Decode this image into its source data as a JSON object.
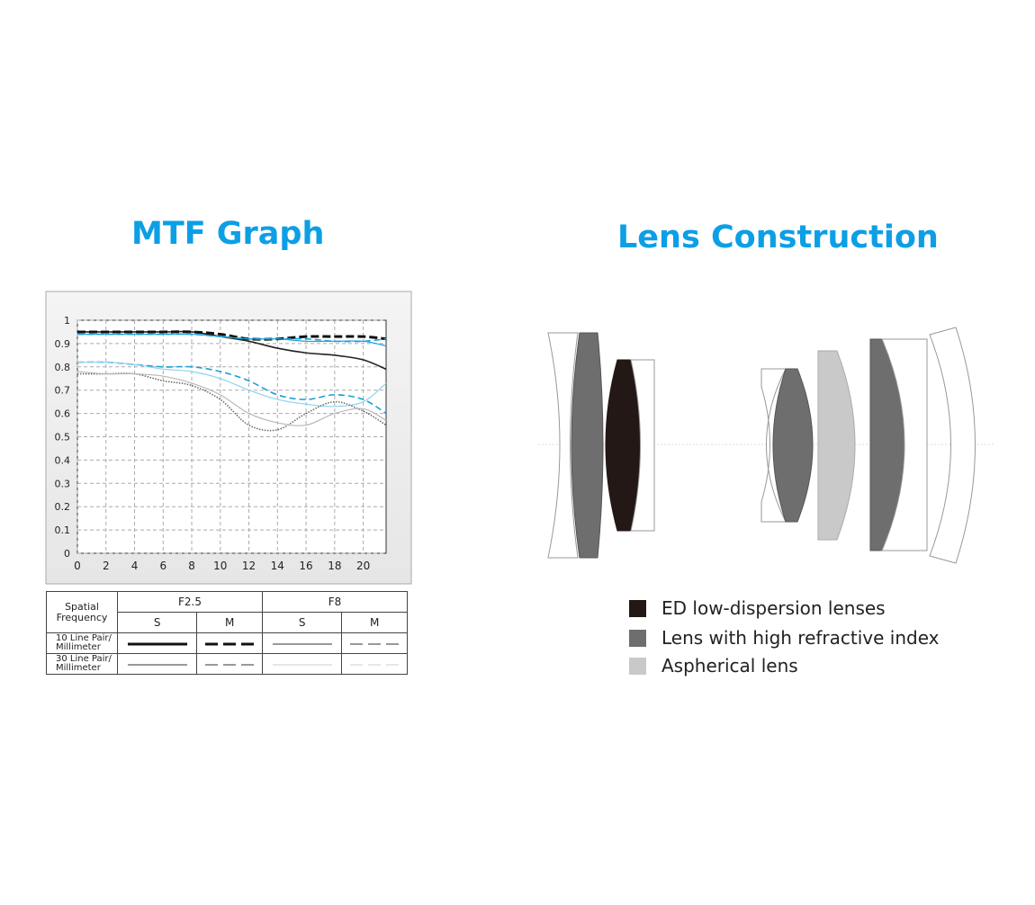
{
  "chart_data": {
    "type": "line",
    "title": "MTF Graph",
    "x": [
      0,
      2,
      4,
      6,
      8,
      10,
      12,
      14,
      16,
      18,
      20,
      21.6
    ],
    "xlim": [
      0,
      21.6
    ],
    "xticks": [
      0,
      2,
      4,
      6,
      8,
      10,
      12,
      14,
      16,
      18,
      20
    ],
    "ylim": [
      0,
      1
    ],
    "yticks": [
      0,
      0.1,
      0.2,
      0.3,
      0.4,
      0.5,
      0.6,
      0.7,
      0.8,
      0.9,
      1
    ],
    "grid": true,
    "series": [
      {
        "color": "#222222",
        "style": "solid-bold",
        "values": [
          0.95,
          0.95,
          0.95,
          0.95,
          0.95,
          0.93,
          0.91,
          0.88,
          0.86,
          0.85,
          0.83,
          0.79
        ]
      },
      {
        "color": "#111111",
        "style": "dashed-bold",
        "values": [
          0.95,
          0.95,
          0.95,
          0.95,
          0.95,
          0.94,
          0.92,
          0.92,
          0.93,
          0.93,
          0.93,
          0.92
        ]
      },
      {
        "color": "#1aa3d9",
        "style": "solid",
        "values": [
          0.94,
          0.94,
          0.94,
          0.94,
          0.94,
          0.93,
          0.92,
          0.92,
          0.91,
          0.91,
          0.91,
          0.89
        ]
      },
      {
        "color": "#1aa3d9",
        "style": "dashed",
        "values": [
          0.94,
          0.94,
          0.94,
          0.94,
          0.94,
          0.93,
          0.92,
          0.92,
          0.92,
          0.91,
          0.91,
          0.92
        ]
      },
      {
        "color": "#1a9fd0",
        "style": "dashed",
        "values": [
          0.82,
          0.82,
          0.81,
          0.8,
          0.8,
          0.78,
          0.74,
          0.68,
          0.66,
          0.68,
          0.66,
          0.6
        ]
      },
      {
        "color": "#8fd3f0",
        "style": "solid",
        "values": [
          0.82,
          0.82,
          0.81,
          0.79,
          0.78,
          0.75,
          0.7,
          0.66,
          0.64,
          0.63,
          0.65,
          0.73
        ]
      },
      {
        "color": "#666666",
        "style": "dotted",
        "values": [
          0.77,
          0.77,
          0.77,
          0.74,
          0.72,
          0.66,
          0.55,
          0.53,
          0.6,
          0.65,
          0.61,
          0.55
        ]
      },
      {
        "color": "#b8b8b8",
        "style": "solid",
        "values": [
          0.78,
          0.77,
          0.77,
          0.76,
          0.73,
          0.68,
          0.6,
          0.56,
          0.55,
          0.6,
          0.62,
          0.57
        ]
      }
    ]
  },
  "table": {
    "corner": "Spatial\nFrequency",
    "apertures": [
      "F2.5",
      "F8"
    ],
    "types": [
      "S",
      "M",
      "S",
      "M"
    ],
    "rows": [
      "10 Line Pair/\nMillimeter",
      "30 Line Pair/\nMillimeter"
    ]
  },
  "lens_construction": {
    "title": "Lens Construction",
    "legend": [
      {
        "label": "ED low-dispersion lenses",
        "color": "#231815"
      },
      {
        "label": "Lens with high refractive index",
        "color": "#6e6e6e"
      },
      {
        "label": "Aspherical lens",
        "color": "#c9c9c9"
      }
    ]
  }
}
